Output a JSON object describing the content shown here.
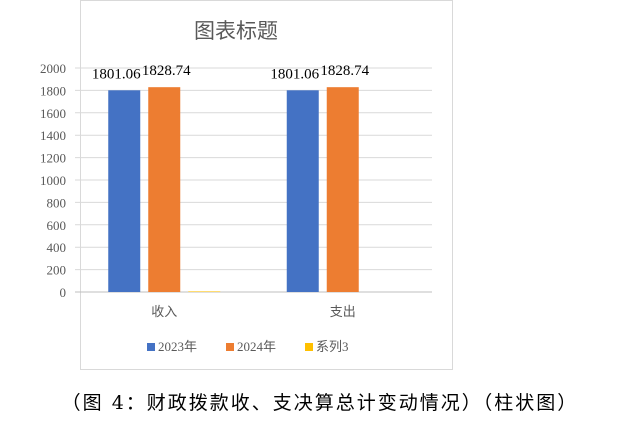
{
  "chart_data": {
    "type": "bar",
    "title": "图表标题",
    "categories": [
      "收入",
      "支出"
    ],
    "series": [
      {
        "name": "2023年",
        "values": [
          1801.06,
          1801.06
        ],
        "color": "#4472c4",
        "labels": [
          "1801.06",
          "1801.06"
        ]
      },
      {
        "name": "2024年",
        "values": [
          1828.74,
          1828.74
        ],
        "color": "#ed7d31",
        "labels": [
          "1828.74",
          "1828.74"
        ]
      },
      {
        "name": "系列3",
        "values": [
          5,
          0
        ],
        "color": "#ffc000",
        "labels": [
          "",
          ""
        ]
      }
    ],
    "ylim": [
      0,
      2000
    ],
    "yticks": [
      0,
      200,
      400,
      600,
      800,
      1000,
      1200,
      1400,
      1600,
      1800,
      2000
    ],
    "grid": true,
    "legend_position": "bottom",
    "xlabel": "",
    "ylabel": ""
  },
  "caption": "（图 4：财政拨款收、支决算总计变动情况）（柱状图）"
}
